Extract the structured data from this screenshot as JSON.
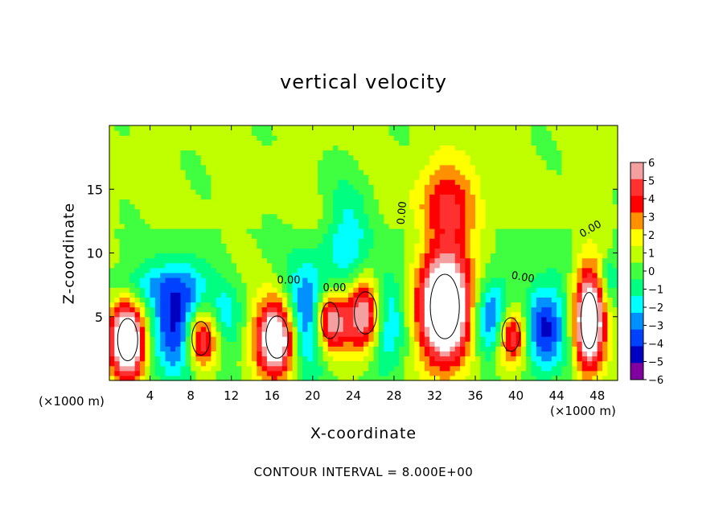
{
  "chart_data": {
    "type": "heatmap",
    "title": "vertical velocity",
    "xlabel": "X-coordinate",
    "ylabel": "Z-coordinate",
    "x_unit_label": "(×1000 m)",
    "x_ticks": [
      4,
      8,
      12,
      16,
      20,
      24,
      28,
      32,
      36,
      40,
      44,
      48
    ],
    "y_ticks": [
      5,
      10,
      15
    ],
    "xlim": [
      0,
      50
    ],
    "ylim": [
      0,
      20
    ],
    "contour_note": "CONTOUR INTERVAL = 8.000E+00",
    "contour_labels": [
      "0.00",
      "0.00",
      "0.00",
      "0.00",
      "0.00"
    ],
    "colorbar": {
      "ticks": [
        6,
        5,
        4,
        3,
        2,
        1,
        0,
        -1,
        -2,
        -3,
        -4,
        -5,
        -6
      ],
      "tick_labels": [
        "6",
        "5",
        "4",
        "3",
        "2",
        "1",
        "0",
        "−1",
        "−2",
        "−3",
        "−4",
        "−5",
        "−6"
      ],
      "range": [
        -6,
        6
      ],
      "colors": [
        "#f4a0a0",
        "#ff3030",
        "#ff0000",
        "#ff9000",
        "#ffff00",
        "#c0ff00",
        "#40ff40",
        "#00ff80",
        "#00ffff",
        "#0090ff",
        "#0040ff",
        "#0000c0",
        "#8000a0"
      ]
    },
    "features": [
      {
        "kind": "updraft",
        "x": 1.8,
        "z": 3.2,
        "rx": 1.8,
        "rz": 3.0,
        "w": 9
      },
      {
        "kind": "updraft",
        "x": 16.5,
        "z": 3.4,
        "rx": 2.0,
        "rz": 3.0,
        "w": 9
      },
      {
        "kind": "updraft",
        "x": 25.2,
        "z": 5.3,
        "rx": 2.0,
        "rz": 3.0,
        "w": 8
      },
      {
        "kind": "updraft",
        "x": 33.0,
        "z": 5.8,
        "rx": 2.6,
        "rz": 4.6,
        "w": 10
      },
      {
        "kind": "updraft",
        "x": 47.2,
        "z": 4.7,
        "rx": 1.5,
        "rz": 4.0,
        "w": 9
      },
      {
        "kind": "updraft",
        "x": 9.0,
        "z": 3.3,
        "rx": 1.6,
        "rz": 2.4,
        "w": 7
      },
      {
        "kind": "updraft",
        "x": 21.7,
        "z": 4.7,
        "rx": 1.6,
        "rz": 2.6,
        "w": 7
      },
      {
        "kind": "updraft",
        "x": 39.5,
        "z": 3.6,
        "rx": 1.6,
        "rz": 2.4,
        "w": 7
      },
      {
        "kind": "updraft",
        "x": 33.5,
        "z": 14.2,
        "rx": 3.0,
        "rz": 3.2,
        "w": 3.2
      },
      {
        "kind": "downdraft",
        "x": 7.0,
        "z": 4.5,
        "rx": 2.8,
        "rz": 4.0,
        "w": -5.5
      },
      {
        "kind": "downdraft",
        "x": 19.5,
        "z": 5.0,
        "rx": 2.5,
        "rz": 4.0,
        "w": -5.0
      },
      {
        "kind": "downdraft",
        "x": 23.5,
        "z": 10.5,
        "rx": 2.2,
        "rz": 5.0,
        "w": -2.6
      },
      {
        "kind": "downdraft",
        "x": 27.0,
        "z": 5.0,
        "rx": 2.0,
        "rz": 4.0,
        "w": -4.5
      },
      {
        "kind": "downdraft",
        "x": 37.8,
        "z": 4.5,
        "rx": 2.0,
        "rz": 3.0,
        "w": -5.0
      },
      {
        "kind": "downdraft",
        "x": 42.8,
        "z": 4.2,
        "rx": 2.2,
        "rz": 3.4,
        "w": -5.0
      },
      {
        "kind": "downdraft",
        "x": 4.0,
        "z": 7.5,
        "rx": 4.0,
        "rz": 1.6,
        "w": -2.0
      },
      {
        "kind": "downdraft",
        "x": 11.5,
        "z": 5.0,
        "rx": 1.4,
        "rz": 2.5,
        "w": -2.0
      },
      {
        "kind": "downdraft",
        "x": 49.2,
        "z": 8.0,
        "rx": 1.0,
        "rz": 2.0,
        "w": -2.0
      }
    ]
  }
}
